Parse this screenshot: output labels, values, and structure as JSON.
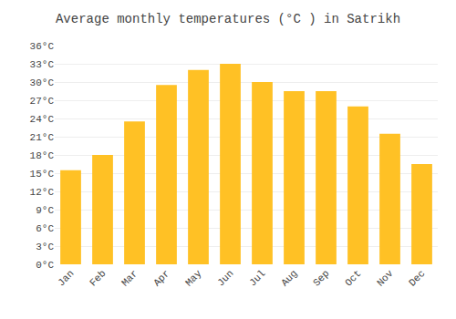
{
  "chart_data": {
    "type": "bar",
    "title": "Average monthly temperatures (°C ) in Satrikh",
    "categories": [
      "Jan",
      "Feb",
      "Mar",
      "Apr",
      "May",
      "Jun",
      "Jul",
      "Aug",
      "Sep",
      "Oct",
      "Nov",
      "Dec"
    ],
    "values": [
      15.5,
      18.0,
      23.5,
      29.5,
      32.0,
      33.0,
      30.0,
      28.5,
      28.5,
      26.0,
      21.5,
      16.5
    ],
    "color": "#FFC125",
    "ylim": [
      0,
      36
    ],
    "yticks": [
      {
        "value": 0,
        "label": "0°C"
      },
      {
        "value": 3,
        "label": "3°C"
      },
      {
        "value": 6,
        "label": "6°C"
      },
      {
        "value": 9,
        "label": "9°C"
      },
      {
        "value": 12,
        "label": "12°C"
      },
      {
        "value": 15,
        "label": "15°C"
      },
      {
        "value": 18,
        "label": "18°C"
      },
      {
        "value": 21,
        "label": "21°C"
      },
      {
        "value": 24,
        "label": "24°C"
      },
      {
        "value": 27,
        "label": "27°C"
      },
      {
        "value": 30,
        "label": "30°C"
      },
      {
        "value": 33,
        "label": "33°C"
      },
      {
        "value": 36,
        "label": "36°C"
      }
    ],
    "grid": true
  }
}
